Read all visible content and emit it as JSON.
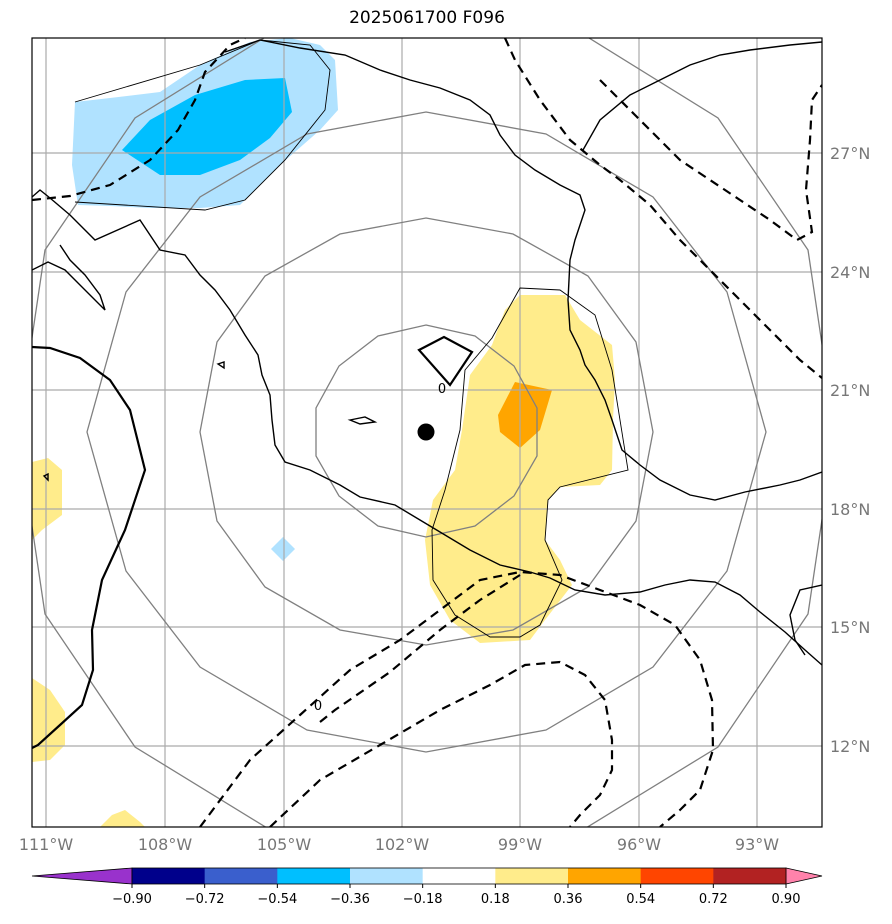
{
  "title": "2025061700 F096",
  "map": {
    "lon_labels": [
      "111°W",
      "108°W",
      "105°W",
      "102°W",
      "99°W",
      "96°W",
      "93°W"
    ],
    "lat_labels": [
      "27°N",
      "24°N",
      "21°N",
      "18°N",
      "15°N",
      "12°N"
    ],
    "lon_values": [
      -111,
      -108,
      -105,
      -102,
      -99,
      -96,
      -93
    ],
    "lat_values": [
      27,
      24,
      21,
      18,
      15,
      12
    ],
    "center_marker": {
      "lon": -101.6,
      "lat": 19.9
    },
    "contour_labels": [
      "0",
      "0"
    ]
  },
  "colorbar": {
    "ticks": [
      "−0.90",
      "−0.72",
      "−0.54",
      "−0.36",
      "−0.18",
      "0.18",
      "0.36",
      "0.54",
      "0.72",
      "0.90"
    ],
    "colors": [
      "#9932CC",
      "#00008B",
      "#3A5FCD",
      "#00BFFF",
      "#B0E2FF",
      "#FFFFFF",
      "#FFEC8B",
      "#FFA500",
      "#FF4500",
      "#B22222",
      "#FF82AB"
    ]
  }
}
